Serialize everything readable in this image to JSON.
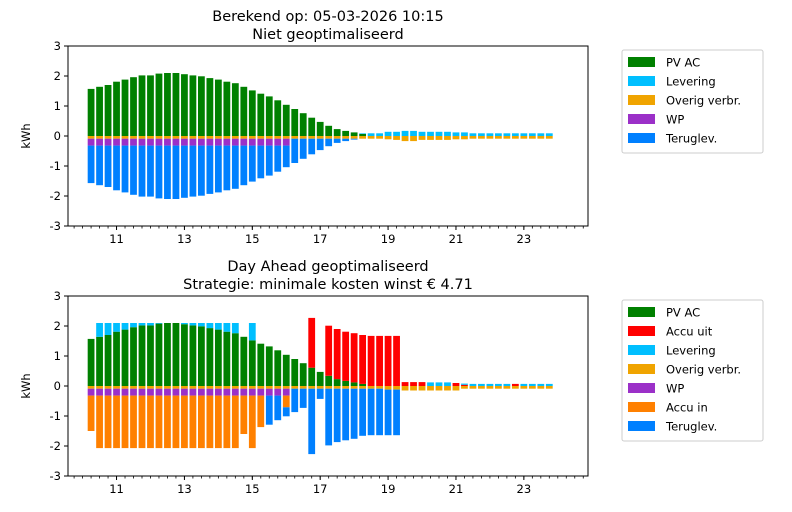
{
  "chart_data": [
    {
      "type": "bar",
      "stacked": true,
      "title": "Berekend op: 05-03-2026 10:15",
      "subtitle": "Niet geoptimaliseerd",
      "xlabel": "",
      "ylabel": "kWh",
      "xlim": [
        9.57,
        24.89
      ],
      "ylim": [
        -3,
        3
      ],
      "xticks": [
        11,
        13,
        15,
        17,
        19,
        21,
        23
      ],
      "yticks": [
        -3,
        -2,
        -1,
        0,
        1,
        2,
        3
      ],
      "grid": false,
      "legend_position": "outside-right",
      "x_start": 10.25,
      "x_step": 0.25,
      "series": [
        {
          "name": "PV AC",
          "color": "#008000",
          "values": [
            1.57,
            1.64,
            1.7,
            1.81,
            1.88,
            1.96,
            2.02,
            2.02,
            2.08,
            2.1,
            2.1,
            2.06,
            2.02,
            1.99,
            1.93,
            1.88,
            1.81,
            1.76,
            1.64,
            1.52,
            1.41,
            1.32,
            1.19,
            1.04,
            0.9,
            0.76,
            0.61,
            0.47,
            0.34,
            0.23,
            0.17,
            0.12,
            0.07,
            0,
            0,
            0,
            0,
            0,
            0,
            0,
            0,
            0,
            0,
            0,
            0,
            0,
            0,
            0,
            0,
            0,
            0,
            0,
            0,
            0,
            0
          ]
        },
        {
          "name": "Levering",
          "color": "#00bfff",
          "values": [
            0,
            0,
            0,
            0,
            0,
            0,
            0,
            0,
            0,
            0,
            0,
            0,
            0,
            0,
            0,
            0,
            0,
            0,
            0,
            0,
            0,
            0,
            0,
            0,
            0,
            0,
            0,
            0,
            0,
            0,
            0,
            0,
            0.02,
            0.09,
            0.09,
            0.14,
            0.14,
            0.17,
            0.17,
            0.14,
            0.14,
            0.14,
            0.14,
            0.12,
            0.12,
            0.09,
            0.09,
            0.09,
            0.09,
            0.09,
            0.09,
            0.09,
            0.09,
            0.09,
            0.09
          ]
        },
        {
          "name": "Overig verbr.",
          "color": "#f0a400",
          "values": [
            -0.09,
            -0.09,
            -0.09,
            -0.09,
            -0.09,
            -0.09,
            -0.09,
            -0.09,
            -0.09,
            -0.09,
            -0.09,
            -0.09,
            -0.09,
            -0.09,
            -0.09,
            -0.09,
            -0.09,
            -0.09,
            -0.09,
            -0.09,
            -0.09,
            -0.09,
            -0.09,
            -0.09,
            -0.09,
            -0.09,
            -0.09,
            -0.09,
            -0.09,
            -0.09,
            -0.09,
            -0.09,
            -0.09,
            -0.09,
            -0.09,
            -0.11,
            -0.13,
            -0.17,
            -0.17,
            -0.13,
            -0.13,
            -0.13,
            -0.13,
            -0.11,
            -0.11,
            -0.09,
            -0.09,
            -0.09,
            -0.09,
            -0.09,
            -0.09,
            -0.09,
            -0.09,
            -0.09,
            -0.09
          ]
        },
        {
          "name": "WP",
          "color": "#9b30c8",
          "values": [
            -0.23,
            -0.23,
            -0.23,
            -0.23,
            -0.23,
            -0.23,
            -0.23,
            -0.23,
            -0.23,
            -0.23,
            -0.23,
            -0.23,
            -0.23,
            -0.23,
            -0.23,
            -0.23,
            -0.23,
            -0.23,
            -0.23,
            -0.23,
            -0.23,
            -0.23,
            -0.23,
            -0.23,
            0,
            0,
            0,
            0,
            0,
            0,
            0,
            0,
            0,
            0,
            0,
            0,
            0,
            0,
            0,
            0,
            0,
            0,
            0,
            0,
            0,
            0,
            0,
            0,
            0,
            0,
            0,
            0,
            0,
            0,
            0
          ]
        },
        {
          "name": "Teruglev.",
          "color": "#0080ff",
          "values": [
            -1.25,
            -1.32,
            -1.38,
            -1.49,
            -1.56,
            -1.64,
            -1.7,
            -1.7,
            -1.76,
            -1.78,
            -1.78,
            -1.74,
            -1.7,
            -1.67,
            -1.61,
            -1.56,
            -1.49,
            -1.44,
            -1.32,
            -1.2,
            -1.09,
            -1.0,
            -0.87,
            -0.72,
            -0.81,
            -0.67,
            -0.52,
            -0.38,
            -0.25,
            -0.14,
            -0.08,
            -0.03,
            0,
            0,
            0,
            0,
            0,
            0,
            0,
            0,
            0,
            0,
            0,
            0,
            0,
            0,
            0,
            0,
            0,
            0,
            0,
            0,
            0,
            0,
            0
          ]
        }
      ]
    },
    {
      "type": "bar",
      "stacked": true,
      "title": "Day Ahead geoptimaliseerd",
      "subtitle": "Strategie: minimale kosten winst € 4.71",
      "xlabel": "",
      "ylabel": "kWh",
      "xlim": [
        9.57,
        24.89
      ],
      "ylim": [
        -3,
        3
      ],
      "xticks": [
        11,
        13,
        15,
        17,
        19,
        21,
        23
      ],
      "yticks": [
        -3,
        -2,
        -1,
        0,
        1,
        2,
        3
      ],
      "grid": false,
      "legend_position": "outside-right",
      "x_start": 10.25,
      "x_step": 0.25,
      "series": [
        {
          "name": "PV AC",
          "color": "#008000",
          "values": [
            1.57,
            1.64,
            1.7,
            1.81,
            1.88,
            1.96,
            2.02,
            2.02,
            2.08,
            2.1,
            2.1,
            2.06,
            2.02,
            1.99,
            1.93,
            1.88,
            1.81,
            1.76,
            1.64,
            1.52,
            1.41,
            1.32,
            1.19,
            1.04,
            0.9,
            0.76,
            0.61,
            0.47,
            0.34,
            0.23,
            0.17,
            0.12,
            0.07,
            0,
            0,
            0,
            0,
            0,
            0,
            0,
            0,
            0,
            0,
            0,
            0,
            0,
            0,
            0,
            0,
            0,
            0,
            0,
            0,
            0,
            0
          ]
        },
        {
          "name": "Accu uit",
          "color": "#ff0000",
          "values": [
            0,
            0,
            0,
            0,
            0,
            0,
            0,
            0,
            0,
            0,
            0,
            0,
            0,
            0,
            0,
            0,
            0,
            0,
            0,
            0,
            0,
            0,
            0,
            0,
            0,
            0,
            1.66,
            0,
            1.67,
            1.67,
            1.64,
            1.64,
            1.63,
            1.67,
            1.67,
            1.67,
            1.67,
            0.13,
            0.13,
            0.13,
            0,
            0,
            0,
            0.1,
            0.04,
            0,
            0,
            0,
            0,
            0,
            0.07,
            0,
            0,
            0,
            0
          ]
        },
        {
          "name": "Levering",
          "color": "#00bfff",
          "values": [
            0,
            0.46,
            0.4,
            0.29,
            0.22,
            0.14,
            0.08,
            0.08,
            0.02,
            0,
            0,
            0.04,
            0.08,
            0.11,
            0.17,
            0.22,
            0.29,
            0.34,
            0,
            0.58,
            0,
            0,
            0,
            0,
            0,
            0,
            0,
            0,
            0,
            0,
            0,
            0,
            0,
            0,
            0,
            0,
            0,
            0,
            0,
            0,
            0.12,
            0.12,
            0.12,
            0,
            0.04,
            0.07,
            0.07,
            0.07,
            0.07,
            0.07,
            0,
            0.07,
            0.07,
            0.07,
            0.07
          ]
        },
        {
          "name": "Overig verbr.",
          "color": "#f0a400",
          "values": [
            -0.09,
            -0.09,
            -0.09,
            -0.09,
            -0.09,
            -0.09,
            -0.09,
            -0.09,
            -0.09,
            -0.09,
            -0.09,
            -0.09,
            -0.09,
            -0.09,
            -0.09,
            -0.09,
            -0.09,
            -0.09,
            -0.09,
            -0.09,
            -0.09,
            -0.09,
            -0.09,
            -0.09,
            -0.09,
            -0.09,
            -0.09,
            -0.09,
            -0.09,
            -0.09,
            -0.09,
            -0.09,
            -0.09,
            -0.09,
            -0.09,
            -0.12,
            -0.12,
            -0.15,
            -0.15,
            -0.15,
            -0.15,
            -0.15,
            -0.15,
            -0.15,
            -0.09,
            -0.09,
            -0.09,
            -0.09,
            -0.09,
            -0.09,
            -0.09,
            -0.09,
            -0.09,
            -0.09,
            -0.09
          ]
        },
        {
          "name": "WP",
          "color": "#9b30c8",
          "values": [
            -0.23,
            -0.23,
            -0.23,
            -0.23,
            -0.23,
            -0.23,
            -0.23,
            -0.23,
            -0.23,
            -0.23,
            -0.23,
            -0.23,
            -0.23,
            -0.23,
            -0.23,
            -0.23,
            -0.23,
            -0.23,
            -0.23,
            -0.23,
            -0.23,
            -0.23,
            -0.23,
            -0.23,
            0,
            0,
            0,
            0,
            0,
            0,
            0,
            0,
            0,
            0,
            0,
            0,
            0,
            0,
            0,
            0,
            0,
            0,
            0,
            0,
            0,
            0,
            0,
            0,
            0,
            0,
            0,
            0,
            0,
            0,
            0
          ]
        },
        {
          "name": "Accu in",
          "color": "#ff8000",
          "values": [
            -1.18,
            -1.75,
            -1.75,
            -1.75,
            -1.75,
            -1.75,
            -1.75,
            -1.75,
            -1.75,
            -1.75,
            -1.75,
            -1.75,
            -1.75,
            -1.75,
            -1.75,
            -1.75,
            -1.75,
            -1.75,
            -1.28,
            -1.75,
            -1.05,
            0,
            0,
            -0.39,
            0,
            0,
            0,
            0,
            0,
            0,
            0,
            0,
            0,
            0,
            0,
            0,
            0,
            0,
            0,
            0,
            0,
            0,
            0,
            0,
            0,
            0,
            0,
            0,
            0,
            0,
            0,
            0,
            0,
            0,
            0
          ]
        },
        {
          "name": "Teruglev.",
          "color": "#0080ff",
          "values": [
            0,
            0,
            0,
            0,
            0,
            0,
            0,
            0,
            0,
            0,
            0,
            0,
            0,
            0,
            0,
            0,
            0,
            0,
            0,
            0,
            0,
            -0.97,
            -0.82,
            -0.3,
            -0.78,
            -0.64,
            -2.18,
            -0.34,
            -1.89,
            -1.78,
            -1.72,
            -1.67,
            -1.57,
            -1.55,
            -1.55,
            -1.52,
            -1.52,
            0,
            0,
            0,
            0,
            0,
            0,
            0,
            0,
            0,
            0,
            0,
            0,
            0,
            0,
            0,
            0,
            0,
            0
          ]
        }
      ]
    }
  ]
}
